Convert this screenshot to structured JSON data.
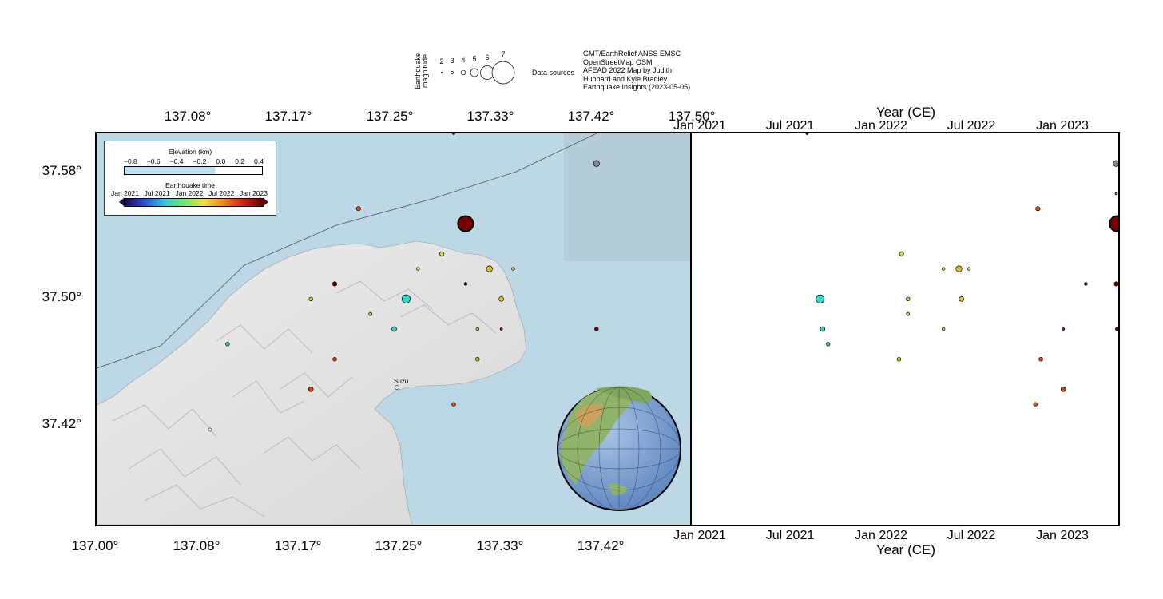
{
  "header": {
    "magnitude_title": "Earthquake magnitude",
    "magnitude_labels": [
      "2",
      "3",
      "4",
      "5",
      "6",
      "7"
    ],
    "data_sources_title": "Data sources",
    "data_sources_lines": [
      "GMT/EarthRelief ANSS EMSC",
      "OpenStreetMap OSM",
      "AFEAD 2022 Map by Judith",
      "Hubbard and Kyle Bradley",
      "Earthquake Insights (2023-05-05)"
    ]
  },
  "map": {
    "lon_top_labels": [
      "137.08°",
      "137.17°",
      "137.25°",
      "137.33°",
      "137.42°",
      "137.50°"
    ],
    "lon_bottom_labels": [
      "137.00°",
      "137.08°",
      "137.17°",
      "137.25°",
      "137.33°",
      "137.42°"
    ],
    "lat_labels": [
      "37.58°",
      "37.50°",
      "37.42°"
    ],
    "town_label": "Suzu",
    "elevation_legend": {
      "title": "Elevation (km)",
      "ticks": [
        "−0.8",
        "−0.6",
        "−0.4",
        "−0.2",
        "0.0",
        "0.2",
        "0.4"
      ]
    },
    "time_legend": {
      "title": "Earthquake time",
      "ticks": [
        "Jan 2021",
        "Jul 2021",
        "Jan 2022",
        "Jul 2022",
        "Jan 2023"
      ]
    },
    "colors": {
      "sea": "#bcd8e6",
      "land": "#e6e6e6"
    }
  },
  "timeline": {
    "axis_title": "Year (CE)",
    "top_labels": [
      "Jan 2021",
      "Jul 2021",
      "Jan 2022",
      "Jul 2022",
      "Jan 2023"
    ],
    "bottom_labels": [
      "Jan 2021",
      "Jul 2021",
      "Jan 2022",
      "Jul 2022",
      "Jan 2023"
    ]
  },
  "chart_data": {
    "type": "scatter",
    "x_axis": "time",
    "y_axis": "latitude",
    "xlim": [
      "2021-01-01",
      "2023-05-05"
    ],
    "ylim": [
      37.34,
      37.6
    ],
    "events": [
      {
        "lon": 137.3,
        "lat": 37.6,
        "date": "2021-08-20",
        "mag": 2.5,
        "color": "#3a0000"
      },
      {
        "lon": 137.42,
        "lat": 37.58,
        "date": "2023-05-01",
        "mag": 4.5,
        "color": "#808890"
      },
      {
        "lon": 137.5,
        "lat": 37.56,
        "date": "2023-05-01",
        "mag": 2.5,
        "color": "#708090"
      },
      {
        "lon": 137.22,
        "lat": 37.55,
        "date": "2022-11-25",
        "mag": 3.8,
        "color": "#e05515"
      },
      {
        "lon": 137.31,
        "lat": 37.54,
        "date": "2023-05-03",
        "mag": 6.5,
        "color": "#7a0000"
      },
      {
        "lon": 137.29,
        "lat": 37.52,
        "date": "2022-02-25",
        "mag": 3.8,
        "color": "#c0e030"
      },
      {
        "lon": 137.33,
        "lat": 37.51,
        "date": "2022-06-20",
        "mag": 4.5,
        "color": "#e8c030"
      },
      {
        "lon": 137.27,
        "lat": 37.51,
        "date": "2022-05-20",
        "mag": 3.0,
        "color": "#f0d040"
      },
      {
        "lon": 137.35,
        "lat": 37.51,
        "date": "2022-07-10",
        "mag": 3.0,
        "color": "#f0c040"
      },
      {
        "lon": 137.31,
        "lat": 37.5,
        "date": "2023-03-01",
        "mag": 3.0,
        "color": "#300000"
      },
      {
        "lon": 137.2,
        "lat": 37.5,
        "date": "2023-05-01",
        "mag": 3.8,
        "color": "#6a0000"
      },
      {
        "lon": 137.18,
        "lat": 37.49,
        "date": "2022-03-10",
        "mag": 3.5,
        "color": "#b0e040"
      },
      {
        "lon": 137.26,
        "lat": 37.49,
        "date": "2021-09-15",
        "mag": 5.2,
        "color": "#30d8c8"
      },
      {
        "lon": 137.34,
        "lat": 37.49,
        "date": "2022-06-25",
        "mag": 4.0,
        "color": "#e8c030"
      },
      {
        "lon": 137.23,
        "lat": 37.48,
        "date": "2022-03-10",
        "mag": 3.2,
        "color": "#b0e040"
      },
      {
        "lon": 137.32,
        "lat": 37.47,
        "date": "2022-05-20",
        "mag": 3.0,
        "color": "#e0d030"
      },
      {
        "lon": 137.34,
        "lat": 37.47,
        "date": "2023-01-15",
        "mag": 2.5,
        "color": "#c02010"
      },
      {
        "lon": 137.42,
        "lat": 37.47,
        "date": "2023-05-03",
        "mag": 3.5,
        "color": "#700000"
      },
      {
        "lon": 137.25,
        "lat": 37.47,
        "date": "2021-09-20",
        "mag": 4.0,
        "color": "#30d0c8"
      },
      {
        "lon": 137.11,
        "lat": 37.46,
        "date": "2021-10-01",
        "mag": 3.5,
        "color": "#30c8b8"
      },
      {
        "lon": 137.32,
        "lat": 37.45,
        "date": "2022-02-20",
        "mag": 3.5,
        "color": "#a8e040"
      },
      {
        "lon": 137.2,
        "lat": 37.45,
        "date": "2022-12-01",
        "mag": 3.5,
        "color": "#e05010"
      },
      {
        "lon": 137.18,
        "lat": 37.43,
        "date": "2023-01-15",
        "mag": 4.0,
        "color": "#d84010"
      },
      {
        "lon": 137.3,
        "lat": 37.42,
        "date": "2022-11-20",
        "mag": 3.5,
        "color": "#e05515"
      }
    ]
  }
}
